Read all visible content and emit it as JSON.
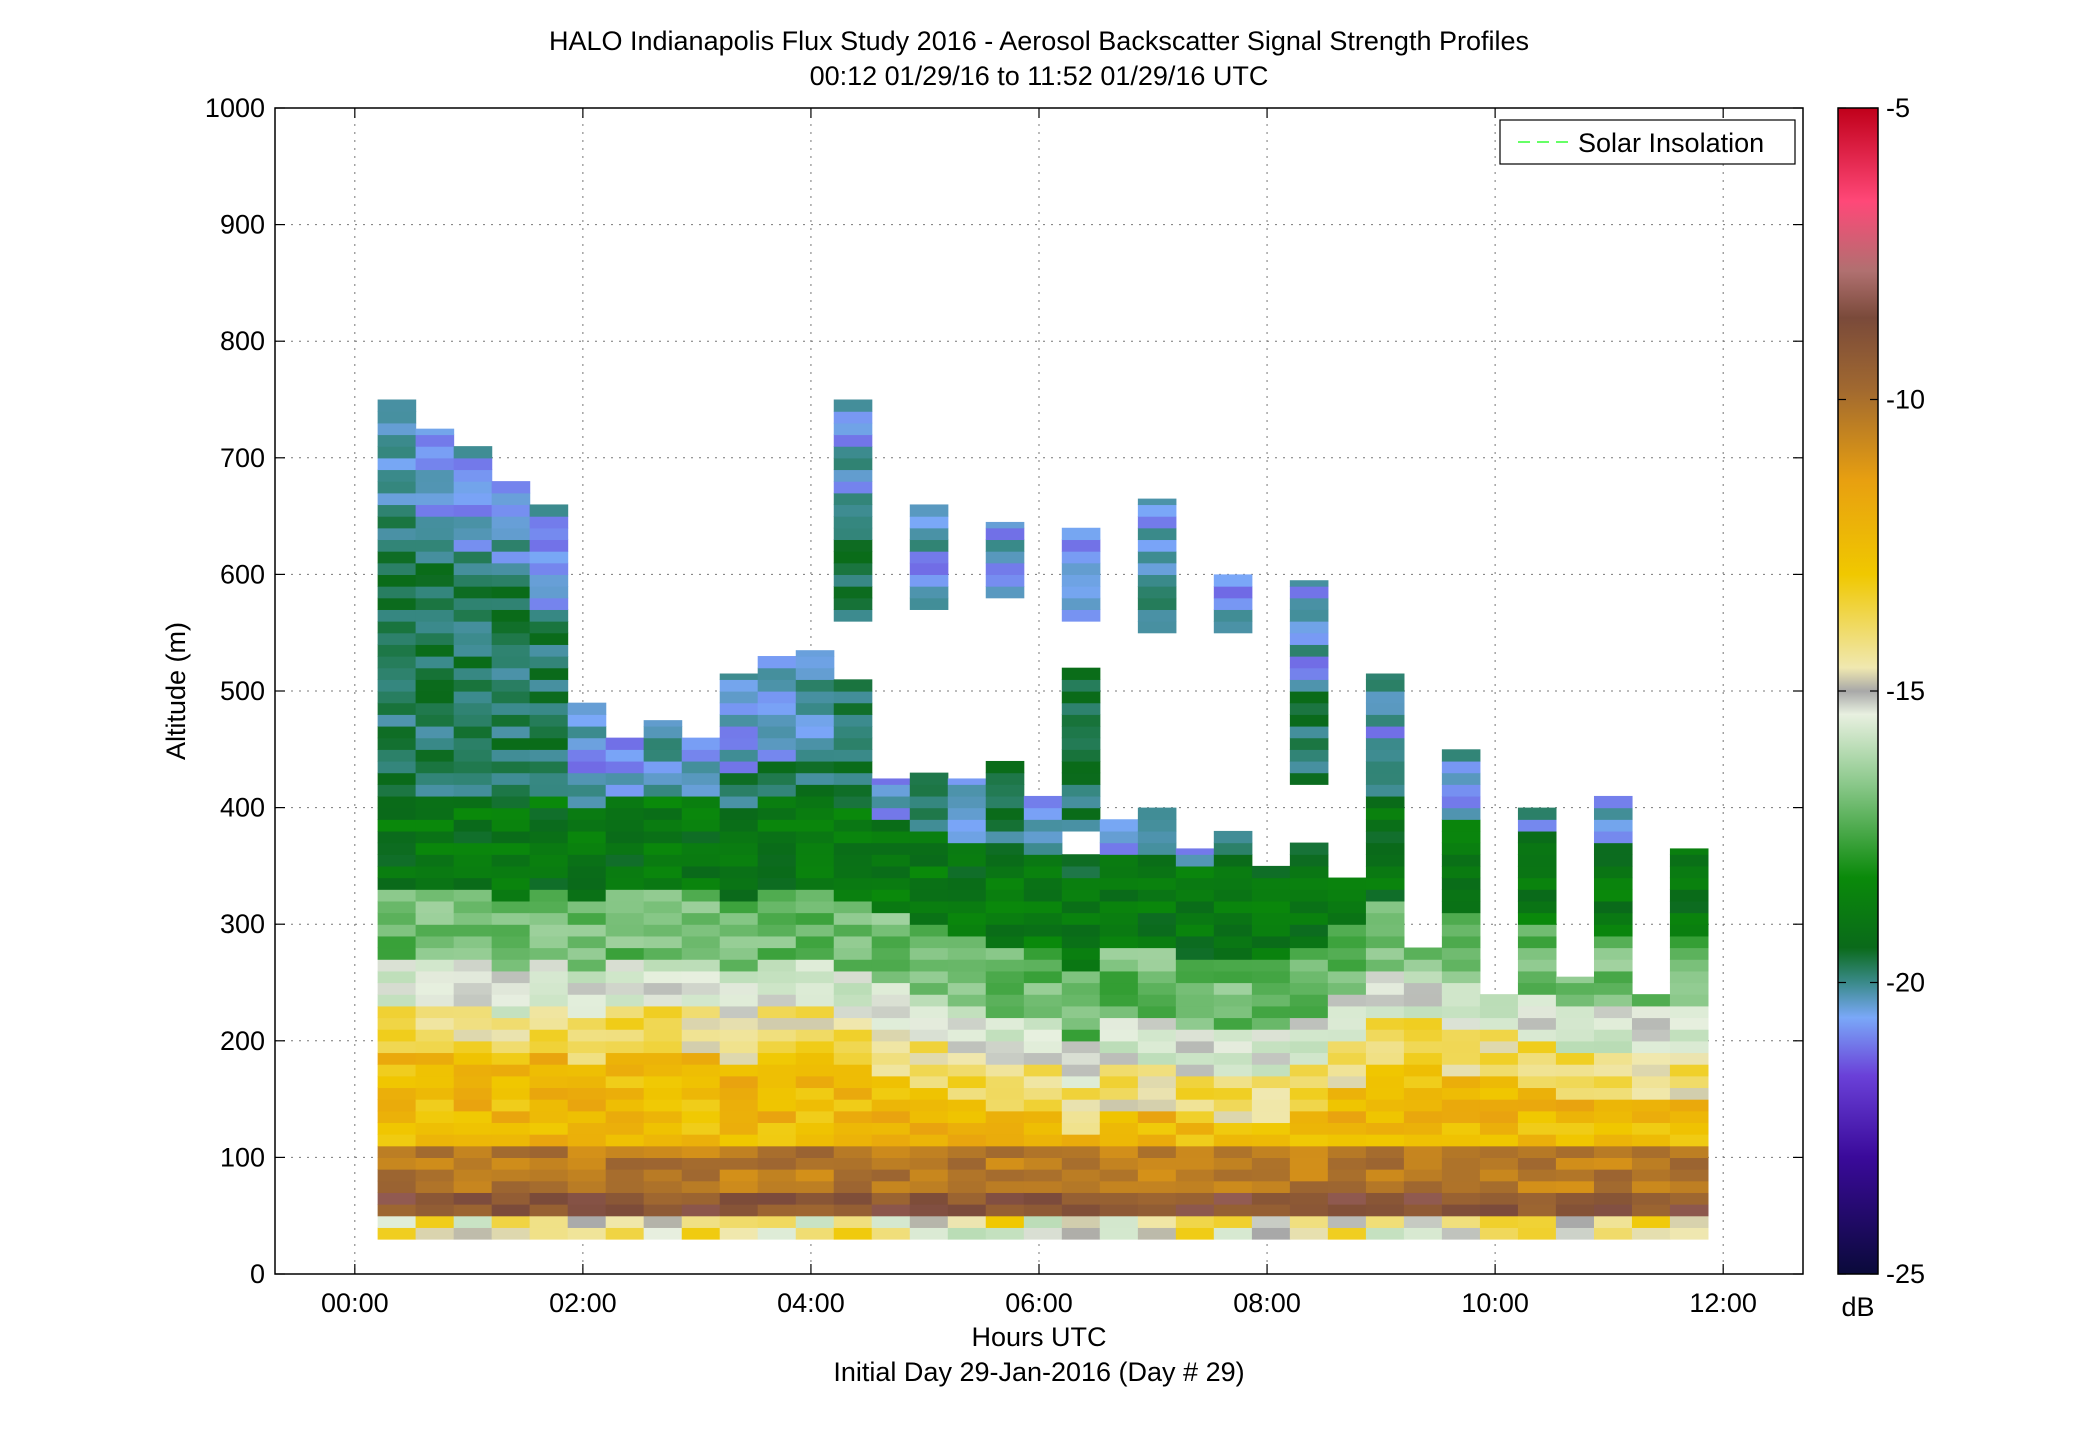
{
  "chart_data": {
    "type": "heatmap",
    "title": "HALO Indianapolis Flux Study 2016 - Aerosol Backscatter Signal Strength Profiles",
    "subtitle": "00:12 01/29/16 to 11:52 01/29/16  UTC",
    "xlabel": "Hours UTC",
    "xlabel2": "Initial Day 29-Jan-2016 (Day # 29)",
    "ylabel": "Altitude (m)",
    "xlim": [
      -0.7,
      12.7
    ],
    "ylim": [
      0,
      1000
    ],
    "x_ticks": [
      0,
      2,
      4,
      6,
      8,
      10,
      12
    ],
    "x_tick_labels": [
      "00:00",
      "02:00",
      "04:00",
      "06:00",
      "08:00",
      "10:00",
      "12:00"
    ],
    "y_ticks": [
      0,
      100,
      200,
      300,
      400,
      500,
      600,
      700,
      800,
      900,
      1000
    ],
    "y_tick_labels": [
      "0",
      "100",
      "200",
      "300",
      "400",
      "500",
      "600",
      "700",
      "800",
      "900",
      "1000"
    ],
    "grid": true,
    "legend": {
      "placement": "top-right",
      "entries": [
        {
          "label": "Solar Insolation",
          "color": "#66ff66",
          "style": "dashed"
        }
      ]
    },
    "colorbar": {
      "label": "dB",
      "range": [
        -25,
        -5
      ],
      "ticks": [
        -25,
        -20,
        -15,
        -10,
        -5
      ],
      "tick_labels": [
        "-25",
        "-20",
        "-15",
        "-10",
        "-5"
      ]
    },
    "profile_start_hours": [
      0.2,
      0.533,
      0.867,
      1.2,
      1.533,
      1.867,
      2.2,
      2.533,
      2.867,
      3.2,
      3.533,
      3.867,
      4.2,
      4.533,
      4.867,
      5.2,
      5.533,
      5.867,
      6.2,
      6.533,
      6.867,
      7.2,
      7.533,
      7.867,
      8.2,
      8.533,
      8.867,
      9.2,
      9.533,
      9.867,
      10.2,
      10.533,
      10.867,
      11.2,
      11.533
    ],
    "profile_width_hours": 0.333,
    "min_altitude": 30,
    "profile_top_altitudes": [
      750,
      725,
      710,
      680,
      660,
      490,
      460,
      475,
      460,
      515,
      530,
      535,
      750,
      425,
      660,
      425,
      645,
      410,
      640,
      390,
      665,
      365,
      600,
      350,
      595,
      340,
      515,
      280,
      450,
      240,
      400,
      255,
      410,
      240,
      365
    ],
    "profile_mixed_layer_top": [
      230,
      230,
      225,
      220,
      225,
      220,
      225,
      230,
      225,
      220,
      225,
      225,
      215,
      210,
      195,
      185,
      175,
      175,
      160,
      175,
      180,
      170,
      165,
      165,
      180,
      195,
      215,
      215,
      210,
      205,
      195,
      185,
      190,
      185,
      190
    ],
    "profile_layer_gaps": [
      [],
      [],
      [],
      [],
      [],
      [],
      [],
      [],
      [],
      [],
      [],
      [],
      [
        [
          505,
          560
        ]
      ],
      [
        [
          430,
          650
        ]
      ],
      [
        [
          430,
          570
        ]
      ],
      [],
      [
        [
          435,
          580
        ]
      ],
      [
        [
          420,
          440
        ]
      ],
      [
        [
          515,
          560
        ],
        [
          360,
          380
        ]
      ],
      [],
      [
        [
          400,
          550
        ]
      ],
      [],
      [
        [
          375,
          555
        ]
      ],
      [],
      [
        [
          365,
          425
        ]
      ],
      [],
      [],
      [],
      [],
      [],
      [],
      [],
      [],
      [],
      []
    ]
  }
}
